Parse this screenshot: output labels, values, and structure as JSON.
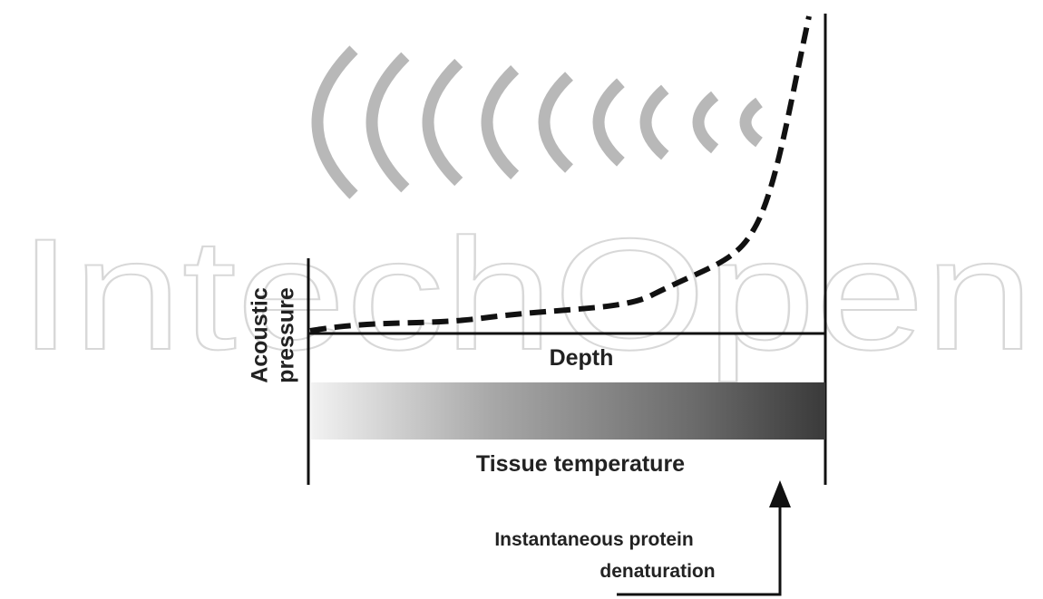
{
  "watermark": "IntechOpen",
  "labels": {
    "y_axis": [
      "Acoustic",
      "pressure"
    ],
    "depth": "Depth",
    "temperature": "Tissue temperature",
    "annotation": [
      "Instantaneous protein",
      "denaturation"
    ]
  }
}
